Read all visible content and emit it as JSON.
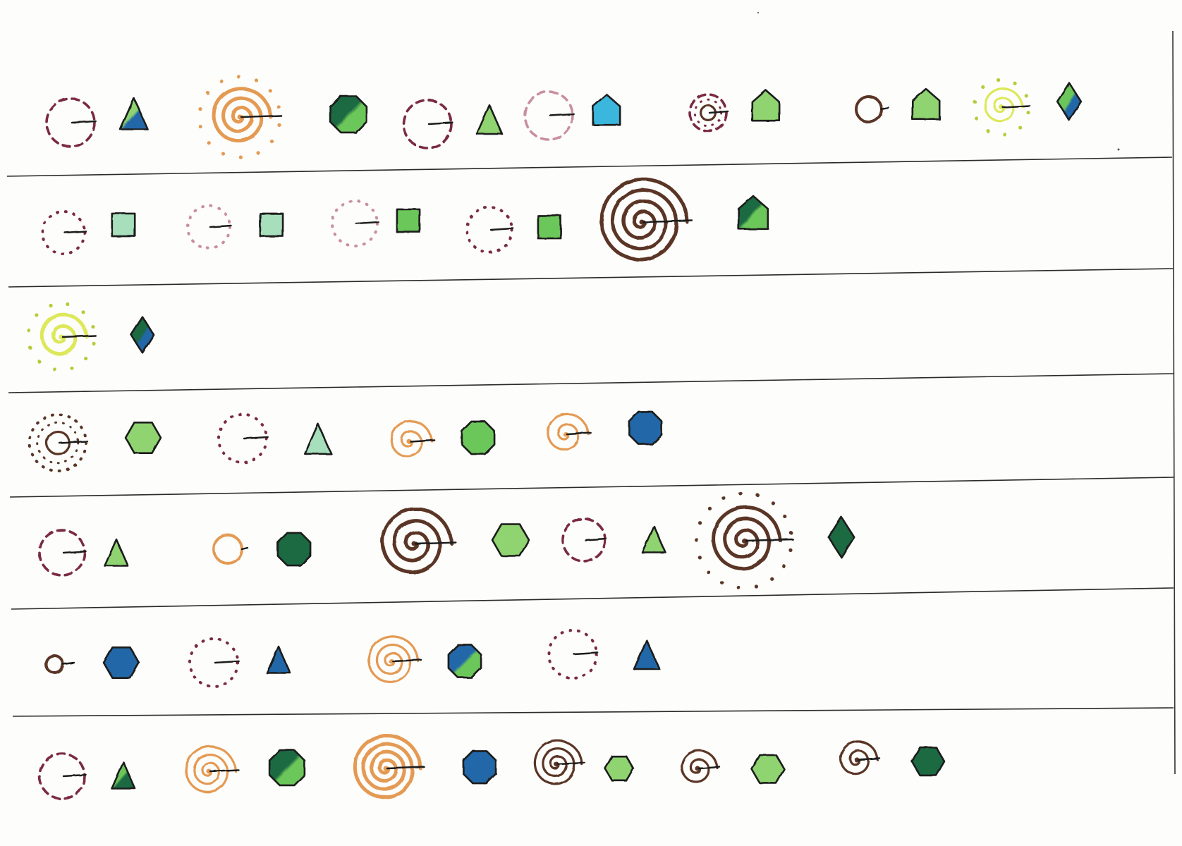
{
  "paper": "#fdfdfb",
  "ink": "#1a1a1a",
  "colors": {
    "maroon": "#7a2a44",
    "pink": "#c98ea3",
    "orange": "#e49a52",
    "brown": "#5a3526",
    "yellow": "#dde85a",
    "light_green": "#8fd470",
    "mint": "#a7dfbd",
    "green": "#6cc75a",
    "dark_green": "#1e6b42",
    "blue": "#2167a8",
    "cyan": "#3ab6dc"
  },
  "rows": [
    {
      "pairs": [
        {
          "circle": {
            "style": "dashed",
            "color": "maroon",
            "rings": 1
          },
          "shape": {
            "type": "triangle",
            "fill": [
              "light_green",
              "blue"
            ]
          }
        },
        {
          "circle": {
            "style": "dotted-spiral",
            "color": "orange",
            "rings": 3
          },
          "shape": {
            "type": "octagon",
            "fill": [
              "dark_green",
              "green"
            ]
          }
        },
        {
          "circle": {
            "style": "dashed",
            "color": "maroon",
            "rings": 1
          },
          "shape": {
            "type": "triangle",
            "fill": [
              "light_green"
            ]
          }
        },
        {
          "circle": {
            "style": "dashed",
            "color": "pink",
            "rings": 1
          },
          "shape": {
            "type": "pentagon",
            "fill": [
              "cyan"
            ]
          }
        },
        {
          "circle": {
            "style": "dashed-core",
            "color": "maroon",
            "rings": 1
          },
          "shape": {
            "type": "pentagon",
            "fill": [
              "light_green"
            ]
          }
        },
        {
          "circle": {
            "style": "solid",
            "color": "brown",
            "rings": 1
          },
          "shape": {
            "type": "pentagon",
            "fill": [
              "light_green"
            ]
          }
        },
        {
          "circle": {
            "style": "dotted-spiral",
            "color": "yellow",
            "rings": 2
          },
          "shape": {
            "type": "diamond",
            "fill": [
              "green",
              "blue"
            ]
          }
        }
      ]
    },
    {
      "pairs": [
        {
          "circle": {
            "style": "dotted",
            "color": "maroon",
            "rings": 1
          },
          "shape": {
            "type": "square",
            "fill": [
              "mint"
            ]
          }
        },
        {
          "circle": {
            "style": "dotted",
            "color": "pink",
            "rings": 1
          },
          "shape": {
            "type": "square",
            "fill": [
              "mint"
            ]
          }
        },
        {
          "circle": {
            "style": "dotted",
            "color": "pink",
            "rings": 1
          },
          "shape": {
            "type": "square",
            "fill": [
              "green"
            ]
          }
        },
        {
          "circle": {
            "style": "dotted",
            "color": "maroon",
            "rings": 1
          },
          "shape": {
            "type": "square",
            "fill": [
              "green"
            ]
          }
        },
        {
          "circle": {
            "style": "spiral",
            "color": "brown",
            "rings": 4
          },
          "shape": {
            "type": "pentagon",
            "fill": [
              "dark_green",
              "green"
            ]
          }
        }
      ]
    },
    {
      "pairs": [
        {
          "circle": {
            "style": "dotted-spiral",
            "color": "yellow",
            "rings": 2
          },
          "shape": {
            "type": "diamond",
            "fill": [
              "dark_green",
              "blue"
            ]
          }
        }
      ]
    },
    {
      "pairs": [
        {
          "circle": {
            "style": "dotted-core",
            "color": "brown",
            "rings": 1
          },
          "shape": {
            "type": "hexagon",
            "fill": [
              "light_green"
            ]
          }
        },
        {
          "circle": {
            "style": "dotted",
            "color": "maroon",
            "rings": 1
          },
          "shape": {
            "type": "triangle",
            "fill": [
              "mint"
            ]
          }
        },
        {
          "circle": {
            "style": "spiral",
            "color": "orange",
            "rings": 2
          },
          "shape": {
            "type": "octagon",
            "fill": [
              "green"
            ]
          }
        },
        {
          "circle": {
            "style": "spiral",
            "color": "orange",
            "rings": 2
          },
          "shape": {
            "type": "octagon",
            "fill": [
              "blue"
            ]
          }
        }
      ]
    },
    {
      "pairs": [
        {
          "circle": {
            "style": "dashed",
            "color": "maroon",
            "rings": 1
          },
          "shape": {
            "type": "triangle",
            "fill": [
              "light_green"
            ]
          }
        },
        {
          "circle": {
            "style": "solid",
            "color": "orange",
            "rings": 1
          },
          "shape": {
            "type": "octagon",
            "fill": [
              "dark_green"
            ]
          }
        },
        {
          "circle": {
            "style": "spiral",
            "color": "brown",
            "rings": 3
          },
          "shape": {
            "type": "hexagon",
            "fill": [
              "light_green"
            ]
          }
        },
        {
          "circle": {
            "style": "dashed",
            "color": "maroon",
            "rings": 1
          },
          "shape": {
            "type": "triangle",
            "fill": [
              "light_green"
            ]
          }
        },
        {
          "circle": {
            "style": "dotted-spiral",
            "color": "brown",
            "rings": 3
          },
          "shape": {
            "type": "diamond",
            "fill": [
              "dark_green"
            ]
          }
        }
      ]
    },
    {
      "pairs": [
        {
          "circle": {
            "style": "solid",
            "color": "brown",
            "rings": 1
          },
          "shape": {
            "type": "hexagon",
            "fill": [
              "blue"
            ]
          }
        },
        {
          "circle": {
            "style": "dotted",
            "color": "maroon",
            "rings": 1
          },
          "shape": {
            "type": "triangle",
            "fill": [
              "blue"
            ]
          }
        },
        {
          "circle": {
            "style": "spiral",
            "color": "orange",
            "rings": 3
          },
          "shape": {
            "type": "octagon",
            "fill": [
              "blue",
              "green"
            ]
          }
        },
        {
          "circle": {
            "style": "dotted",
            "color": "maroon",
            "rings": 1
          },
          "shape": {
            "type": "triangle",
            "fill": [
              "blue"
            ]
          }
        }
      ]
    },
    {
      "pairs": [
        {
          "circle": {
            "style": "dashed",
            "color": "maroon",
            "rings": 1
          },
          "shape": {
            "type": "triangle",
            "fill": [
              "green",
              "dark_green"
            ]
          }
        },
        {
          "circle": {
            "style": "spiral",
            "color": "orange",
            "rings": 3
          },
          "shape": {
            "type": "octagon",
            "fill": [
              "dark_green",
              "green"
            ]
          }
        },
        {
          "circle": {
            "style": "spiral",
            "color": "orange",
            "rings": 4
          },
          "shape": {
            "type": "octagon",
            "fill": [
              "blue"
            ]
          }
        },
        {
          "circle": {
            "style": "spiral",
            "color": "brown",
            "rings": 3
          },
          "shape": {
            "type": "hexagon",
            "fill": [
              "light_green"
            ]
          }
        },
        {
          "circle": {
            "style": "spiral",
            "color": "brown",
            "rings": 2
          },
          "shape": {
            "type": "hexagon",
            "fill": [
              "light_green"
            ]
          }
        },
        {
          "circle": {
            "style": "spiral",
            "color": "brown",
            "rings": 2
          },
          "shape": {
            "type": "hexagon",
            "fill": [
              "dark_green"
            ]
          }
        }
      ]
    }
  ]
}
